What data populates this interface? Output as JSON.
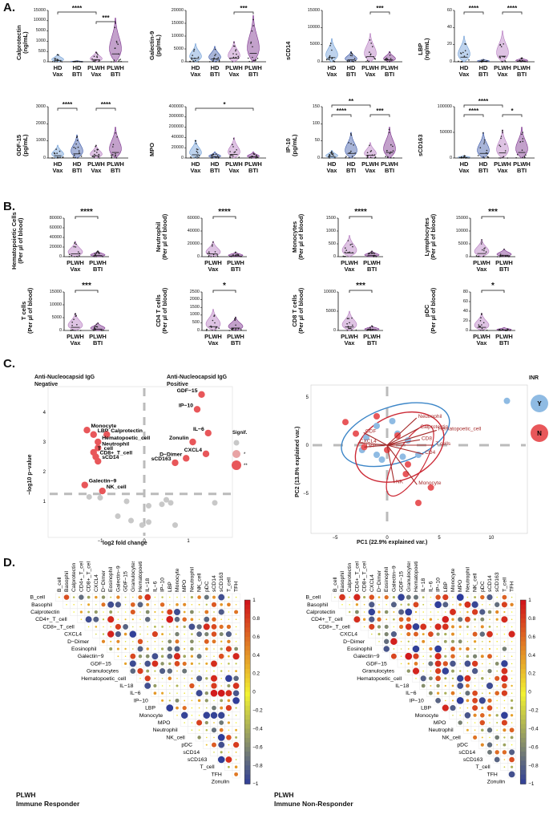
{
  "panel_letters": [
    "A.",
    "B.",
    "C.",
    "D."
  ],
  "panelA": [
    {
      "ylabel": "Calprotectin\n(ng/mL)",
      "ticks": [
        "15000",
        "10000",
        "5000",
        "1000",
        "500",
        "0"
      ],
      "groups": [
        "HD\nVax",
        "HD\nBTI",
        "PLWH\nVax",
        "PLWH\nBTI"
      ],
      "stars": [
        "****",
        "***"
      ]
    },
    {
      "ylabel": "Galectin-9\n(pg/mL)",
      "ticks": [
        "20000",
        "15000",
        "10000",
        "5000",
        "0"
      ],
      "groups": [
        "HD\nVax",
        "HD\nBTI",
        "PLWH\nVax",
        "PLWH\nBTI"
      ],
      "stars": [
        "***"
      ]
    },
    {
      "ylabel": "sCD14",
      "ticks": [
        "15000",
        "10000",
        "5000",
        "0"
      ],
      "groups": [
        "HD\nVax",
        "HD\nBTI",
        "PLWH\nVax",
        "PLWH\nBTI"
      ],
      "stars": [
        "***"
      ]
    },
    {
      "ylabel": "LBP\n(ng/mL)",
      "ticks": [
        "60",
        "40",
        "20",
        "0"
      ],
      "groups": [
        "HD\nVax",
        "HD\nBTI",
        "PLWH\nVax",
        "PLWH\nBTI"
      ],
      "stars": [
        "****",
        "****"
      ]
    },
    {
      "ylabel": "GDF-15\n(pg/mL)",
      "ticks": [
        "3000",
        "2000",
        "1000",
        "0"
      ],
      "groups": [
        "HD\nVax",
        "HD\nBTI",
        "PLWH\nVax",
        "PLWH\nBTI"
      ],
      "stars": [
        "****",
        "****"
      ]
    },
    {
      "ylabel": "MPO",
      "ticks": [
        "400000",
        "300000",
        "200000",
        "40000",
        "20000",
        "0"
      ],
      "groups": [
        "HD\nVax",
        "HD\nBTI",
        "PLWH\nVax",
        "PLWH\nBTI"
      ],
      "stars": [
        "*"
      ]
    },
    {
      "ylabel": "IP-10\n(pg/mL)",
      "ticks": [
        "150",
        "100",
        "50",
        "0"
      ],
      "groups": [
        "HD\nVax",
        "HD\nBTI",
        "PLWH\nVax",
        "PLWH\nBTI"
      ],
      "stars": [
        "**",
        "****",
        "***"
      ]
    },
    {
      "ylabel": "sCD163",
      "ticks": [
        "100000",
        "50000",
        "0"
      ],
      "groups": [
        "HD\nVax",
        "HD\nBTI",
        "PLWH\nVax",
        "PLWH\nBTI"
      ],
      "stars": [
        "****",
        "****",
        "*"
      ]
    }
  ],
  "panelB": [
    {
      "ylabel": "Hematopoietic Cells\n(Per µl of blood)",
      "ticks": [
        "80000",
        "60000",
        "40000",
        "20000",
        "0"
      ],
      "groups": [
        "PLWH\nVax",
        "PLWH\nBTI"
      ],
      "star": "****"
    },
    {
      "ylabel": "Neutrophil\n(Per µl of blood)",
      "ticks": [
        "60000",
        "40000",
        "20000",
        "0"
      ],
      "groups": [
        "PLWH\nVax",
        "PLWH\nBTI"
      ],
      "star": "****"
    },
    {
      "ylabel": "Monocytes\n(Per µl of blood)",
      "ticks": [
        "1500",
        "1000",
        "500",
        "0"
      ],
      "groups": [
        "PLWH\nVax",
        "PLWH\nBTI"
      ],
      "star": "****"
    },
    {
      "ylabel": "Lymphocytes\n(Per µl of blood)",
      "ticks": [
        "15000",
        "10000",
        "5000",
        "0"
      ],
      "groups": [
        "PLWH\nVax",
        "PLWH\nBTI"
      ],
      "star": "***"
    },
    {
      "ylabel": "T cells\n(Per µl of blood)",
      "ticks": [
        "15000",
        "10000",
        "5000",
        "0"
      ],
      "groups": [
        "PLWH\nVax",
        "PLWH\nBTI"
      ],
      "star": "***"
    },
    {
      "ylabel": "CD4 T cells\n(Per µl of blood)",
      "ticks": [
        "2500",
        "2000",
        "1500",
        "1000",
        "500",
        "0"
      ],
      "groups": [
        "PLWH\nVax",
        "PLWH\nBTI"
      ],
      "star": "*"
    },
    {
      "ylabel": "CD8 T cells\n(Per µl of blood)",
      "ticks": [
        "10000",
        "5000",
        "0"
      ],
      "groups": [
        "PLWH\nVax",
        "PLWH\nBTI"
      ],
      "star": "***"
    },
    {
      "ylabel": "pDC\n(Per µl of blood)",
      "ticks": [
        "80",
        "60",
        "40",
        "20",
        "0"
      ],
      "groups": [
        "PLWH\nVax",
        "PLWH\nBTI"
      ],
      "star": "*"
    }
  ],
  "volcano": {
    "neg_label": "Anti-Nucleocapsid IgG\nNegative",
    "pos_label": "Anti-Nucleocapsid IgG\nPositive",
    "xlabel": "log2 fold change",
    "ylabel": "−log10 p−value",
    "xticks": [
      "−1",
      "0",
      "1"
    ],
    "yticks": [
      "4",
      "3",
      "2",
      "1"
    ],
    "legend_title": "Signif.",
    "legend_items": [
      "",
      "*",
      "**"
    ],
    "points": [
      {
        "label": "GDF−15",
        "x": 1.3,
        "y": 4.6
      },
      {
        "label": "IP−10",
        "x": 1.2,
        "y": 4.1
      },
      {
        "label": "IL−6",
        "x": 1.45,
        "y": 3.3
      },
      {
        "label": "Zonulin",
        "x": 1.1,
        "y": 3.0
      },
      {
        "label": "CXCL4",
        "x": 1.4,
        "y": 2.6
      },
      {
        "label": "D−Dimer",
        "x": 0.95,
        "y": 2.45
      },
      {
        "label": "sCD163",
        "x": 0.7,
        "y": 2.3
      },
      {
        "label": "Monocyte",
        "x": -1.3,
        "y": 3.4
      },
      {
        "label": "LBP",
        "x": -1.15,
        "y": 3.25
      },
      {
        "label": "Calprotectin",
        "x": -0.85,
        "y": 3.25
      },
      {
        "label": "Hematopoetic_cell",
        "x": -1.05,
        "y": 3.0
      },
      {
        "label": "Neutrophil",
        "x": -1.05,
        "y": 2.8
      },
      {
        "label": "T_cell",
        "x": -1.15,
        "y": 2.65
      },
      {
        "label": "CD8+_T_cell",
        "x": -1.1,
        "y": 2.5
      },
      {
        "label": "sCD14",
        "x": -1.05,
        "y": 2.35
      },
      {
        "label": "Galectin−9",
        "x": -1.35,
        "y": 1.55
      },
      {
        "label": "NK_cell",
        "x": -0.95,
        "y": 1.35
      }
    ]
  },
  "pca": {
    "xlabel": "PC1 (22.9% explained var.)",
    "ylabel": "PC2 (13.8% explained var.)",
    "xticks": [
      "−5",
      "0",
      "5",
      "10"
    ],
    "yticks": [
      "5",
      "0",
      "−5"
    ],
    "legend_title": "INR",
    "legend_items": [
      "Y",
      "N"
    ],
    "loadings": [
      "Calprotectin",
      "Neutrophil",
      "CD8",
      "Hematopoetic_cell",
      "T cells",
      "CD4",
      "Monocyte",
      "CXCL4",
      "GDF",
      "LBP",
      "NK"
    ]
  },
  "corr": {
    "left_title": "PLWH\nImmune Responder",
    "right_title": "PLWH\nImmune Non-Responder",
    "variables": [
      "B_cell",
      "Basophil",
      "Calprotectin",
      "CD4+_T_cell",
      "CD8+_T_cell",
      "CXCL4",
      "D−Dimer",
      "Eosinophil",
      "Galectin−9",
      "GDF−15",
      "Granulocytes",
      "Hematopoetic_cell",
      "IL−18",
      "IL−6",
      "IP−10",
      "LBP",
      "Monocyte",
      "MPO",
      "Neutrophil",
      "NK_cell",
      "pDC",
      "sCD14",
      "sCD163",
      "T_cell",
      "TFH",
      "Zonulin"
    ],
    "scale_ticks": [
      "1",
      "0.8",
      "0.6",
      "0.4",
      "0.2",
      "0",
      "−0.2",
      "−0.4",
      "−0.6",
      "−0.8",
      "−1"
    ],
    "colors": {
      "neg": "#2b3a9b",
      "mid": "#f2f231",
      "pos": "#d1161b"
    }
  }
}
